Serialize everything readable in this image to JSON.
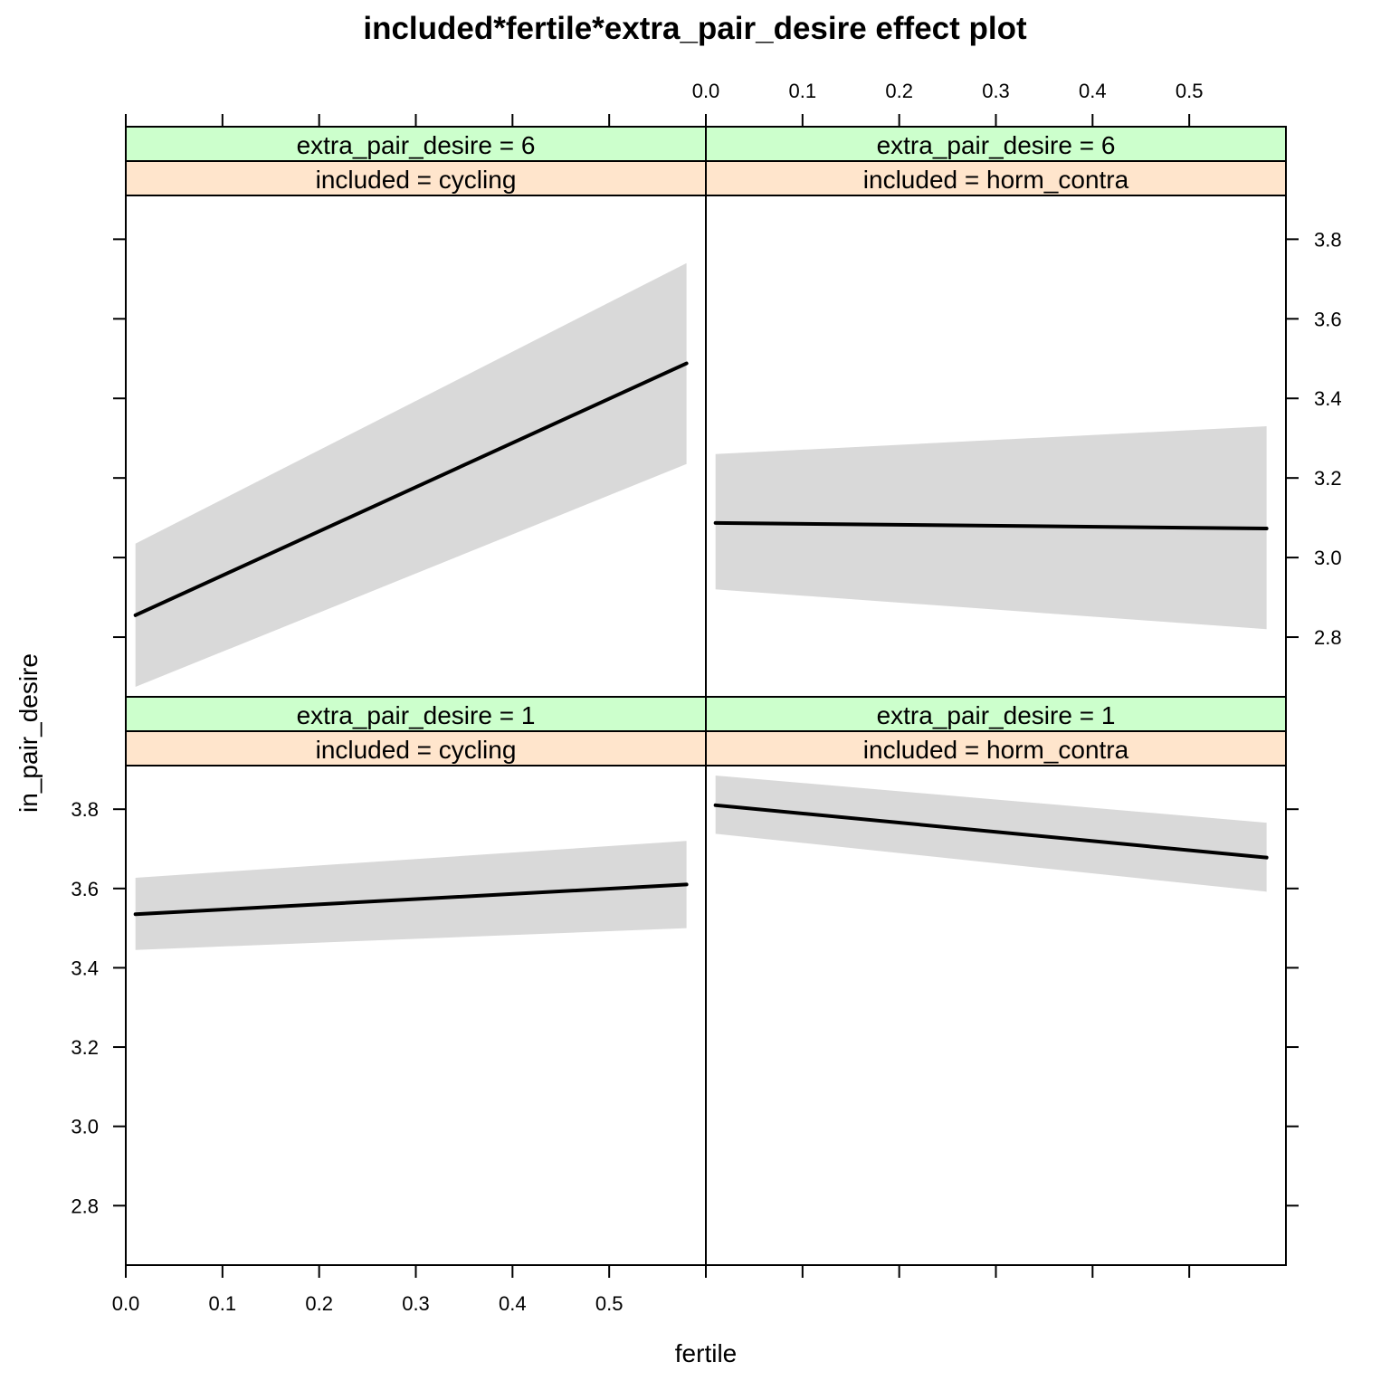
{
  "chart_data": {
    "type": "line",
    "title": "included*fertile*extra_pair_desire effect plot",
    "xlabel": "fertile",
    "ylabel": "in_pair_desire",
    "xlim": [
      0.0,
      0.6
    ],
    "ylim": [
      2.65,
      3.91
    ],
    "x_ticks": [
      0.0,
      0.1,
      0.2,
      0.3,
      0.4,
      0.5
    ],
    "x_tick_labels": [
      "0.0",
      "0.1",
      "0.2",
      "0.3",
      "0.4",
      "0.5"
    ],
    "y_ticks": [
      2.8,
      3.0,
      3.2,
      3.4,
      3.6,
      3.8
    ],
    "y_tick_labels": [
      "2.8",
      "3.0",
      "3.2",
      "3.4",
      "3.6",
      "3.8"
    ],
    "grid": false,
    "line_color": "#000000",
    "band_color": "#d9d9d9",
    "strip_colors": {
      "extra_pair_desire": "#ccffcc",
      "included": "#ffe5cc"
    },
    "panels": [
      {
        "strip_top": "extra_pair_desire = 6",
        "strip_bottom": "included = cycling",
        "row": "top",
        "col": "left",
        "x": [
          0.01,
          0.58
        ],
        "fit": [
          2.855,
          3.488
        ],
        "lower": [
          2.675,
          3.235
        ],
        "upper": [
          3.035,
          3.74
        ]
      },
      {
        "strip_top": "extra_pair_desire = 6",
        "strip_bottom": "included = horm_contra",
        "row": "top",
        "col": "right",
        "x": [
          0.01,
          0.58
        ],
        "fit": [
          3.087,
          3.073
        ],
        "lower": [
          2.92,
          2.82
        ],
        "upper": [
          3.26,
          3.33
        ]
      },
      {
        "strip_top": "extra_pair_desire = 1",
        "strip_bottom": "included = cycling",
        "row": "bottom",
        "col": "left",
        "x": [
          0.01,
          0.58
        ],
        "fit": [
          3.535,
          3.61
        ],
        "lower": [
          3.445,
          3.5
        ],
        "upper": [
          3.627,
          3.72
        ]
      },
      {
        "strip_top": "extra_pair_desire = 1",
        "strip_bottom": "included = horm_contra",
        "row": "bottom",
        "col": "right",
        "x": [
          0.01,
          0.58
        ],
        "fit": [
          3.81,
          3.678
        ],
        "lower": [
          3.738,
          3.592
        ],
        "upper": [
          3.885,
          3.766
        ]
      }
    ]
  }
}
